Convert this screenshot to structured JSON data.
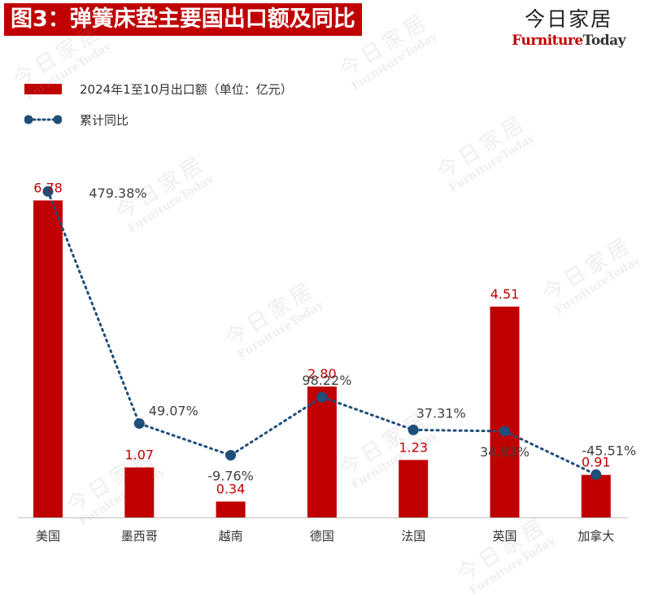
{
  "header": {
    "title": "图3：弹簧床垫主要国出口额及同比"
  },
  "brand": {
    "name_cn": "今日家居",
    "name_en_part1": "Furniture",
    "name_en_part2": "Today"
  },
  "colors": {
    "bar": "#c00000",
    "line": "#1f4e79",
    "title_bg": "#c00000"
  },
  "chart_data": {
    "type": "bar",
    "categories": [
      "美国",
      "墨西哥",
      "越南",
      "德国",
      "法国",
      "英国",
      "加拿大"
    ],
    "series": [
      {
        "name": "2024年1至10月出口额（单位：亿元）",
        "type": "bar",
        "values": [
          6.78,
          1.07,
          0.34,
          2.8,
          1.23,
          4.51,
          0.91
        ],
        "labels": [
          "6.78",
          "1.07",
          "0.34",
          "2.80",
          "1.23",
          "4.51",
          "0.91"
        ]
      },
      {
        "name": "累计同比",
        "type": "line",
        "style": "dotted",
        "values": [
          479.38,
          49.07,
          -9.76,
          98.22,
          37.31,
          34.93,
          -45.51
        ],
        "labels": [
          "479.38%",
          "49.07%",
          "-9.76%",
          "98.22%",
          "37.31%",
          "34.93%",
          "-45.51%"
        ]
      }
    ],
    "ylim_bar": [
      0,
      7.5
    ],
    "ylim_line": [
      -125,
      525
    ],
    "legend_position": "top-left"
  }
}
